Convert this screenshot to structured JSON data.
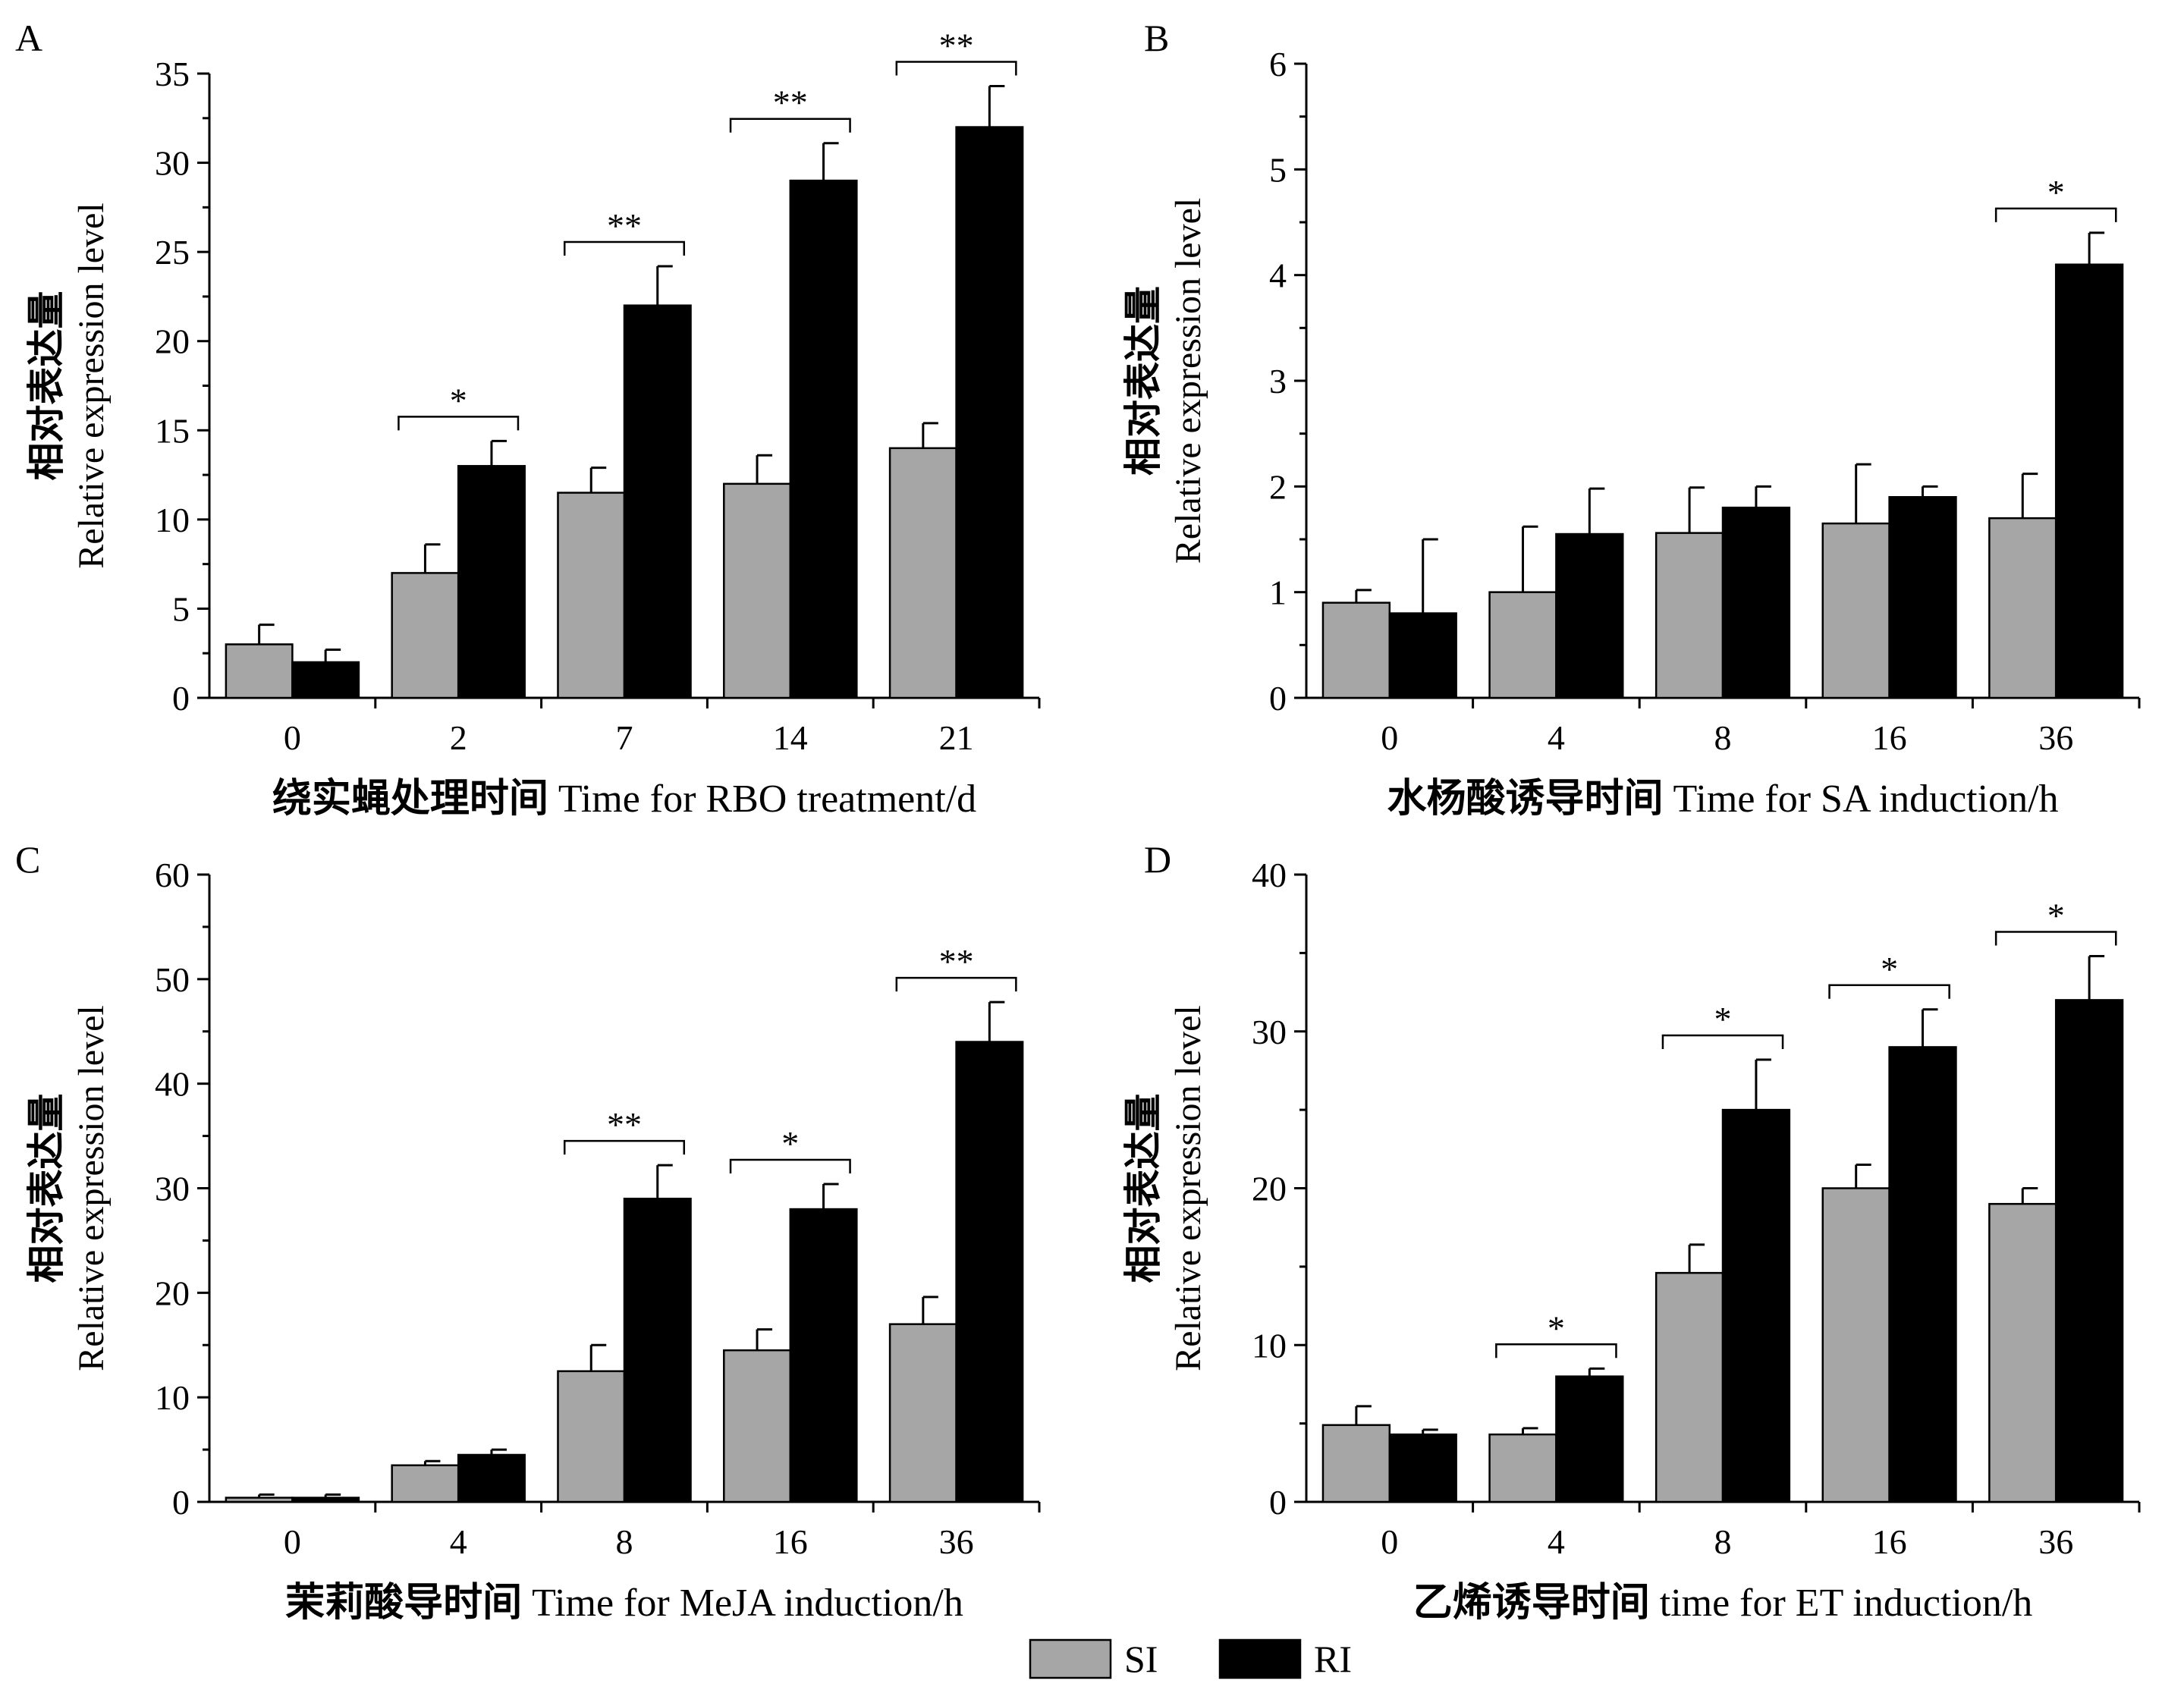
{
  "legend": {
    "items": [
      {
        "label": "SI",
        "color": "#a6a6a6"
      },
      {
        "label": "RI",
        "color": "#000000"
      }
    ]
  },
  "chart_data": [
    {
      "type": "bar",
      "panel": "A",
      "ylabel_cn": "相对表达量",
      "ylabel_en": "Relative expression level",
      "xlabel_cn": "绕实蝇处理时间",
      "xlabel_en": "Time for RBO treatment/d",
      "categories": [
        "0",
        "2",
        "7",
        "14",
        "21"
      ],
      "ylim": [
        0,
        35
      ],
      "yticks": [
        0,
        5,
        10,
        15,
        20,
        25,
        30,
        35
      ],
      "series": [
        {
          "name": "SI",
          "values": [
            3,
            7,
            11.5,
            12,
            14
          ],
          "errors": [
            1.1,
            1.6,
            1.4,
            1.6,
            1.4
          ]
        },
        {
          "name": "RI",
          "values": [
            2,
            13,
            22,
            29,
            32
          ],
          "errors": [
            0.7,
            1.4,
            2.2,
            2.1,
            2.3
          ]
        }
      ],
      "significance": [
        "",
        "*",
        "**",
        "**",
        "**"
      ]
    },
    {
      "type": "bar",
      "panel": "B",
      "ylabel_cn": "相对表达量",
      "ylabel_en": "Relative expression level",
      "xlabel_cn": "水杨酸诱导时间",
      "xlabel_en": "Time for SA induction/h",
      "categories": [
        "0",
        "4",
        "8",
        "16",
        "36"
      ],
      "ylim": [
        0,
        6
      ],
      "yticks": [
        0,
        1,
        2,
        3,
        4,
        5,
        6
      ],
      "series": [
        {
          "name": "SI",
          "values": [
            0.9,
            1.0,
            1.56,
            1.65,
            1.7
          ],
          "errors": [
            0.12,
            0.62,
            0.43,
            0.56,
            0.42
          ]
        },
        {
          "name": "RI",
          "values": [
            0.8,
            1.55,
            1.8,
            1.9,
            4.1
          ],
          "errors": [
            0.7,
            0.43,
            0.2,
            0.1,
            0.3
          ]
        }
      ],
      "significance": [
        "",
        "",
        "",
        "",
        "*"
      ]
    },
    {
      "type": "bar",
      "panel": "C",
      "ylabel_cn": "相对表达量",
      "ylabel_en": "Relative expression level",
      "xlabel_cn": "茉莉酸导时间",
      "xlabel_en": "Time for MeJA induction/h",
      "categories": [
        "0",
        "4",
        "8",
        "16",
        "36"
      ],
      "ylim": [
        0,
        60
      ],
      "yticks": [
        0,
        10,
        20,
        30,
        40,
        50,
        60
      ],
      "series": [
        {
          "name": "SI",
          "values": [
            0.4,
            3.5,
            12.5,
            14.5,
            17
          ],
          "errors": [
            0.3,
            0.4,
            2.5,
            2.0,
            2.6
          ]
        },
        {
          "name": "RI",
          "values": [
            0.4,
            4.5,
            29,
            28,
            44
          ],
          "errors": [
            0.3,
            0.5,
            3.2,
            2.4,
            3.8
          ]
        }
      ],
      "significance": [
        "",
        "",
        "**",
        "*",
        "**"
      ]
    },
    {
      "type": "bar",
      "panel": "D",
      "ylabel_cn": "相对表达量",
      "ylabel_en": "Relative expression level",
      "xlabel_cn": "乙烯诱导时间",
      "xlabel_en": "time for ET induction/h",
      "categories": [
        "0",
        "4",
        "8",
        "16",
        "36"
      ],
      "ylim": [
        0,
        40
      ],
      "yticks": [
        0,
        10,
        20,
        30,
        40
      ],
      "series": [
        {
          "name": "SI",
          "values": [
            4.9,
            4.3,
            14.6,
            20,
            19
          ],
          "errors": [
            1.2,
            0.4,
            1.8,
            1.5,
            1.0
          ]
        },
        {
          "name": "RI",
          "values": [
            4.3,
            8,
            25,
            29,
            32
          ],
          "errors": [
            0.3,
            0.5,
            3.2,
            2.4,
            2.8
          ]
        }
      ],
      "significance": [
        "",
        "*",
        "*",
        "*",
        "*"
      ]
    }
  ]
}
